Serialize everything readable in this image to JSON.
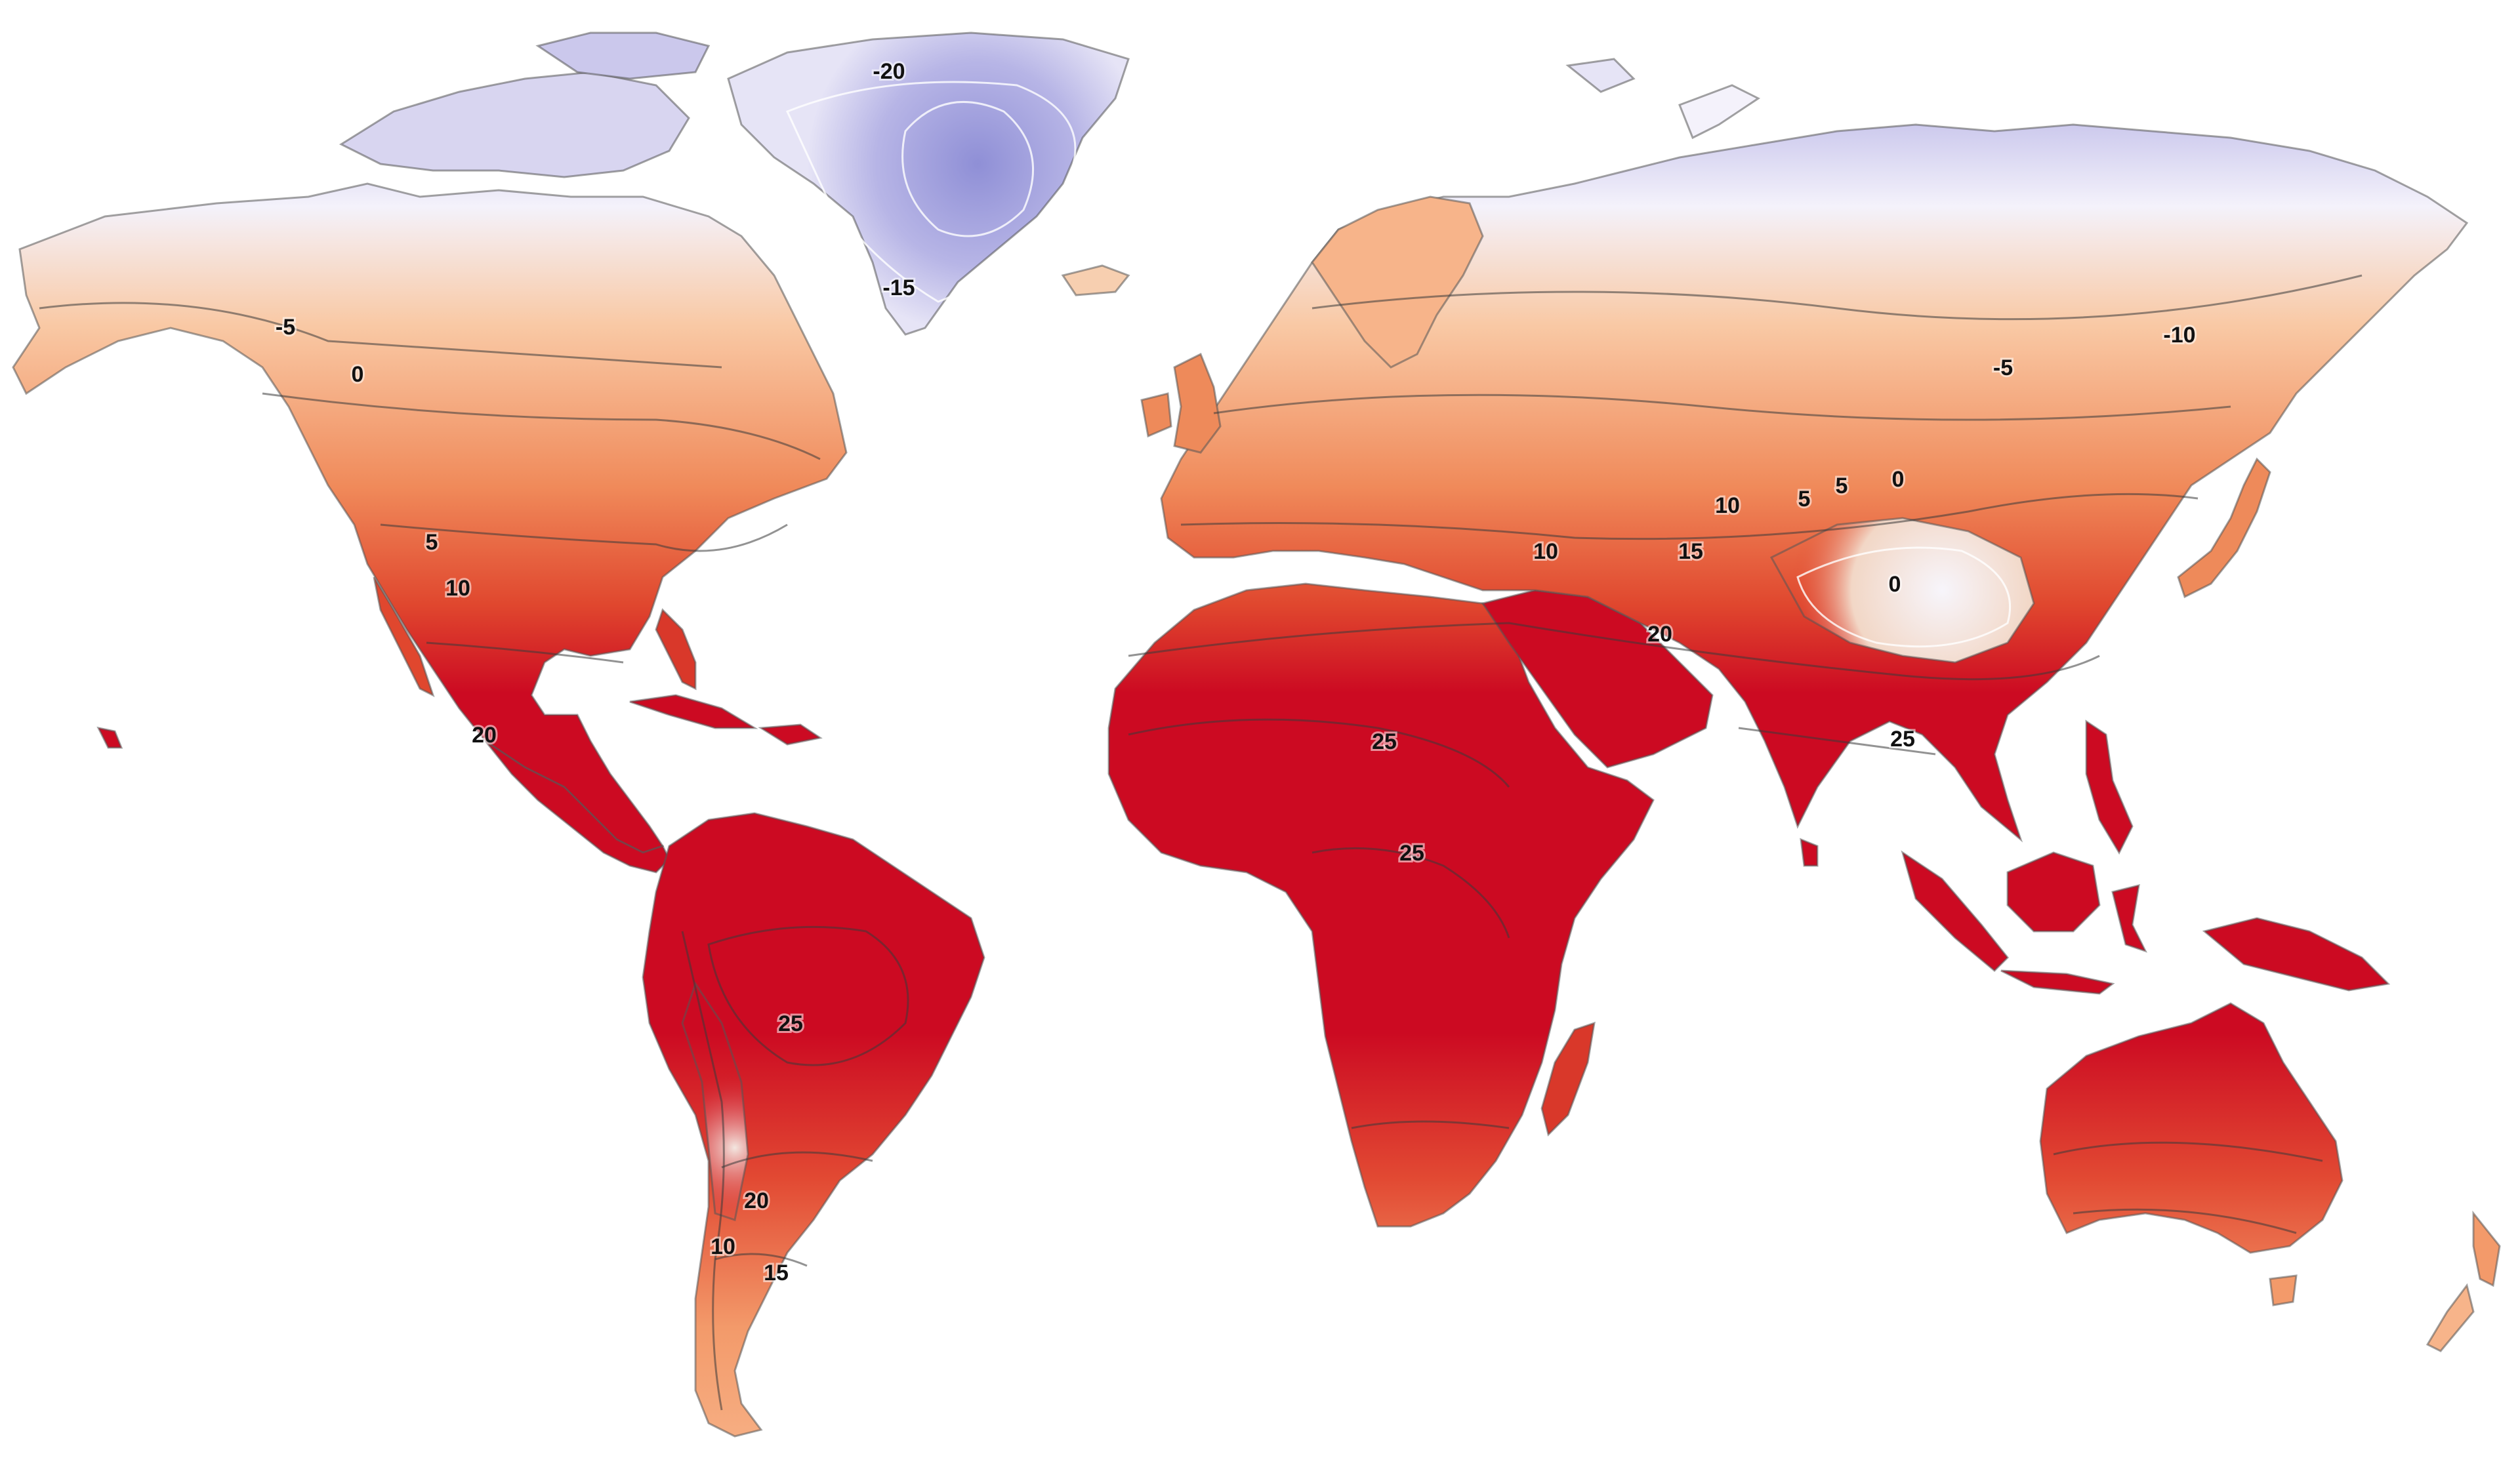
{
  "map": {
    "colors": {
      "very_cold": "#8f8fd6",
      "cold": "#c9c6ec",
      "cool": "#f4f2fb",
      "mild": "#f9c9a5",
      "warm": "#f08a5a",
      "hot": "#e0472e",
      "very_hot": "#cc0a22"
    },
    "contour_labels": [
      {
        "id": "greenland-minus20",
        "text": "-20"
      },
      {
        "id": "greenland-minus15",
        "text": "-15"
      },
      {
        "id": "alaska-minus5",
        "text": "-5"
      },
      {
        "id": "canada-0",
        "text": "0"
      },
      {
        "id": "rockies-5",
        "text": "5"
      },
      {
        "id": "rockies-10",
        "text": "10"
      },
      {
        "id": "mexico-20",
        "text": "20"
      },
      {
        "id": "sahara-25",
        "text": "25"
      },
      {
        "id": "central-africa-25",
        "text": "25"
      },
      {
        "id": "amazon-25",
        "text": "25"
      },
      {
        "id": "argentina-20",
        "text": "20"
      },
      {
        "id": "andes-10",
        "text": "10"
      },
      {
        "id": "patagonia-15",
        "text": "15"
      },
      {
        "id": "turkey-10",
        "text": "10"
      },
      {
        "id": "central-asia-10",
        "text": "10"
      },
      {
        "id": "central-asia-5a",
        "text": "5"
      },
      {
        "id": "central-asia-5b",
        "text": "5"
      },
      {
        "id": "mongolia-0",
        "text": "0"
      },
      {
        "id": "himalaya-15",
        "text": "15"
      },
      {
        "id": "tibet-0",
        "text": "0"
      },
      {
        "id": "iran-20",
        "text": "20"
      },
      {
        "id": "bangladesh-25",
        "text": "25"
      },
      {
        "id": "siberia-minus5",
        "text": "-5"
      },
      {
        "id": "siberia-minus10",
        "text": "-10"
      }
    ]
  }
}
